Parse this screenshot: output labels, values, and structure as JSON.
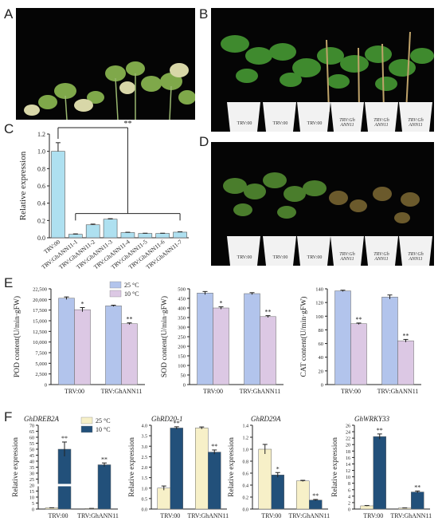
{
  "panels": {
    "A": "A",
    "B": "B",
    "C": "C",
    "D": "D",
    "E": "E",
    "F": "F"
  },
  "photos": {
    "B_pot_labels": [
      "TRV:00",
      "TRV:00",
      "TRV:00",
      "TRV:Gh ANN11",
      "TRV:Gh ANN11",
      "TRV:Gh ANN11"
    ],
    "D_pot_labels": [
      "TRV:00",
      "TRV:00",
      "TRV:00",
      "TRV:Gh ANN11",
      "TRV:Gh ANN11",
      "TRV:Gh ANN11"
    ]
  },
  "colors": {
    "blue_light": "#aee0f0",
    "lavender_blue": "#b2c4ec",
    "mauve": "#dcc8e4",
    "yellow": "#f7f0c8",
    "navy": "#22507a"
  },
  "chart_data": [
    {
      "id": "C",
      "type": "bar",
      "categories": [
        "TRV:00",
        "TRV:GhANN11-1",
        "TRV:GhANN11-2",
        "TRV:GhANN11-3",
        "TRV:GhANN11-4",
        "TRV:GhANN11-5",
        "TRV:GhANN11-6",
        "TRV:GhANN11-7"
      ],
      "values": [
        1.0,
        0.04,
        0.15,
        0.215,
        0.06,
        0.05,
        0.05,
        0.065
      ],
      "errors": [
        0.1,
        0.005,
        0.008,
        0.006,
        0.004,
        0.003,
        0.003,
        0.004
      ],
      "ylabel": "Relative expression",
      "ylim": [
        0,
        1.2
      ],
      "yticks": [
        "0.0",
        "0.2",
        "0.4",
        "0.6",
        "0.8",
        "1.0",
        "1.2"
      ],
      "significance": "**"
    },
    {
      "id": "E1",
      "type": "bar",
      "categories": [
        "TRV:00",
        "TRV:GhANN11"
      ],
      "ylabel": "POD content(U/min·gFW)",
      "ylim": [
        0,
        22500
      ],
      "yticks": [
        "0",
        "2,500",
        "5,000",
        "7,500",
        "10,000",
        "12,500",
        "15,000",
        "17,500",
        "20,000",
        "22,500"
      ],
      "legend": [
        "25 °C",
        "10 °C"
      ],
      "series": [
        {
          "name": "25 °C",
          "values": [
            20300,
            18500
          ],
          "errors": [
            300,
            150
          ]
        },
        {
          "name": "10 °C",
          "values": [
            17600,
            14300
          ],
          "errors": [
            500,
            200
          ]
        }
      ],
      "marks": [
        [
          "",
          "*"
        ],
        [
          "",
          "**"
        ]
      ]
    },
    {
      "id": "E2",
      "type": "bar",
      "categories": [
        "TRV:00",
        "TRV:GhANN11"
      ],
      "ylabel": "SOD content(U/min·gFW)",
      "ylim": [
        0,
        500
      ],
      "yticks": [
        "0",
        "50",
        "100",
        "150",
        "200",
        "250",
        "300",
        "350",
        "400",
        "450",
        "500"
      ],
      "series": [
        {
          "values": [
            478,
            475
          ],
          "errors": [
            8,
            5
          ]
        },
        {
          "values": [
            400,
            355
          ],
          "errors": [
            6,
            5
          ]
        }
      ],
      "marks": [
        [
          "",
          "*"
        ],
        [
          "",
          "**"
        ]
      ]
    },
    {
      "id": "E3",
      "type": "bar",
      "categories": [
        "TRV:00",
        "TRV:GhANN11"
      ],
      "ylabel": "CAT content(U/min·gFW)",
      "ylim": [
        0,
        140
      ],
      "yticks": [
        "0",
        "20",
        "40",
        "60",
        "80",
        "100",
        "120",
        "140"
      ],
      "series": [
        {
          "values": [
            137,
            128
          ],
          "errors": [
            1,
            3
          ]
        },
        {
          "values": [
            89,
            64
          ],
          "errors": [
            1,
            2
          ]
        }
      ],
      "marks": [
        [
          "",
          "**"
        ],
        [
          "",
          "**"
        ]
      ]
    },
    {
      "id": "F1",
      "type": "bar",
      "title": "GhDREB2A",
      "categories": [
        "TRV:00",
        "TRV:GhANN11"
      ],
      "ylabel": "Relative expression",
      "ylim": [
        0,
        70
      ],
      "broken_axis": true,
      "yticks": [
        "0",
        "5",
        "10",
        "15",
        "20",
        "25",
        "30",
        "35",
        "40",
        "45",
        "50",
        "55",
        "60",
        "65",
        "70"
      ],
      "legend": [
        "25 °C",
        "10 °C"
      ],
      "series": [
        {
          "name": "25 °C",
          "values": [
            1.0,
            0.5
          ],
          "errors": [
            0.1,
            0.05
          ]
        },
        {
          "name": "10 °C",
          "values": [
            50,
            37
          ],
          "errors": [
            6,
            1.5
          ]
        }
      ],
      "marks": [
        [
          "",
          "**"
        ],
        [
          "",
          "**"
        ]
      ]
    },
    {
      "id": "F2",
      "type": "bar",
      "title": "GhRD20-1",
      "categories": [
        "TRV:00",
        "TRV:GhANN11"
      ],
      "ylabel": "Relative expression",
      "ylim": [
        0,
        4.0
      ],
      "yticks": [
        "0.0",
        "0.5",
        "1.0",
        "1.5",
        "2.0",
        "2.5",
        "3.0",
        "3.5",
        "4.0"
      ],
      "series": [
        {
          "values": [
            1.0,
            3.87
          ],
          "errors": [
            0.1,
            0.05
          ]
        },
        {
          "values": [
            3.87,
            2.72
          ],
          "errors": [
            0.06,
            0.1
          ]
        }
      ],
      "marks": [
        [
          "",
          "**"
        ],
        [
          "",
          "**"
        ]
      ]
    },
    {
      "id": "F3",
      "type": "bar",
      "title": "GhRD29A",
      "categories": [
        "TRV:00",
        "TRV:GhANN11"
      ],
      "ylabel": "Relative expression",
      "ylim": [
        0,
        1.4
      ],
      "yticks": [
        "0.0",
        "0.2",
        "0.4",
        "0.6",
        "0.8",
        "1.0",
        "1.2",
        "1.4"
      ],
      "series": [
        {
          "values": [
            1.0,
            0.47
          ],
          "errors": [
            0.08,
            0.01
          ]
        },
        {
          "values": [
            0.57,
            0.15
          ],
          "errors": [
            0.04,
            0.01
          ]
        }
      ],
      "marks": [
        [
          "",
          "*"
        ],
        [
          "",
          "**"
        ]
      ]
    },
    {
      "id": "F4",
      "type": "bar",
      "title": "GhWRKY33",
      "categories": [
        "TRV:00",
        "TRV:GhANN11"
      ],
      "ylabel": "Relative expression",
      "ylim": [
        0,
        26
      ],
      "yticks": [
        "0",
        "2",
        "4",
        "6",
        "8",
        "10",
        "12",
        "14",
        "16",
        "18",
        "20",
        "22",
        "24",
        "26"
      ],
      "series": [
        {
          "values": [
            1.0,
            0.3
          ],
          "errors": [
            0.1,
            0.05
          ]
        },
        {
          "values": [
            22.5,
            5.3
          ],
          "errors": [
            0.8,
            0.3
          ]
        }
      ],
      "marks": [
        [
          "",
          "**"
        ],
        [
          "",
          "**"
        ]
      ]
    }
  ]
}
